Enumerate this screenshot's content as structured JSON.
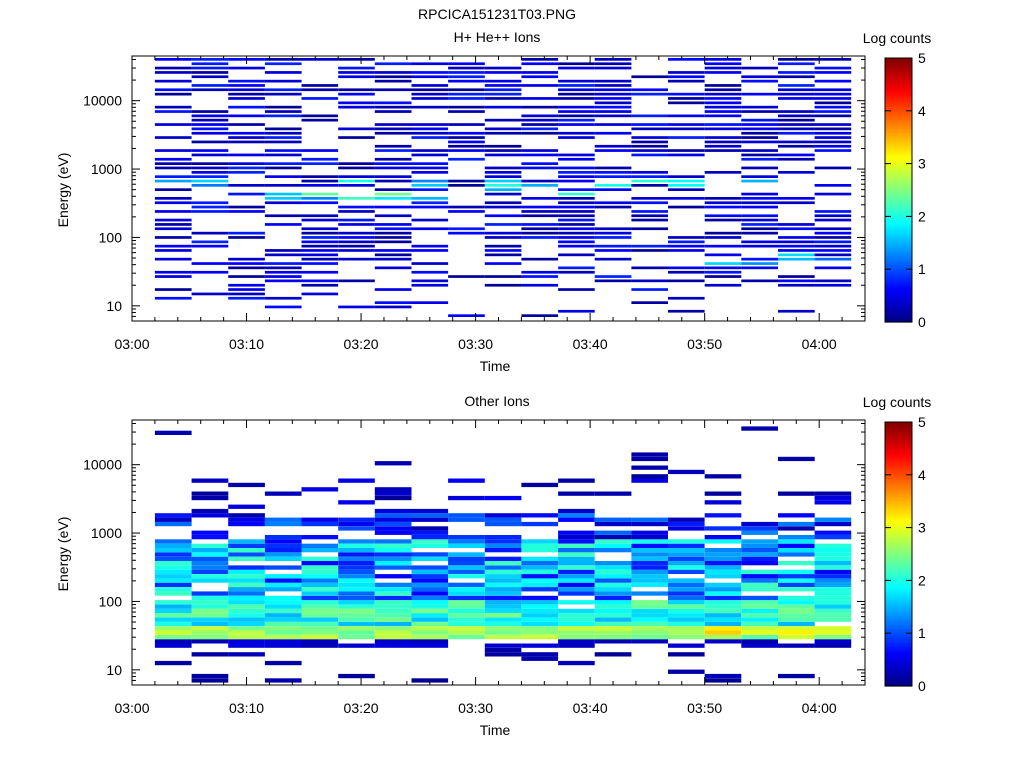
{
  "figure": {
    "title": "RPCICA151231T03.PNG"
  },
  "chart_data": [
    {
      "type": "heatmap",
      "title": "H+ He++ Ions",
      "xlabel": "Time",
      "ylabel": "Energy (eV)",
      "yscale": "log",
      "ylim": [
        6,
        45000
      ],
      "xlim_minutes": [
        0,
        64
      ],
      "xticks": [
        "03:00",
        "03:10",
        "03:20",
        "03:30",
        "03:40",
        "03:50",
        "04:00"
      ],
      "yticks": [
        "10",
        "100",
        "1000",
        "10000"
      ],
      "colorbar": {
        "label": "Log counts",
        "range": [
          0,
          5
        ],
        "ticks": [
          "0",
          "1",
          "2",
          "3",
          "4",
          "5"
        ]
      },
      "time_columns_start_minutes": [
        2,
        5.2,
        8.4,
        11.6,
        14.8,
        18,
        21.2,
        24.4,
        27.6,
        30.8,
        34,
        37.2,
        40.4,
        43.6,
        46.8,
        50,
        53.2,
        56.4,
        59.6
      ],
      "column_width_minutes": 3.2,
      "seed": 7,
      "profile": "h_ions"
    },
    {
      "type": "heatmap",
      "title": "Other Ions",
      "xlabel": "Time",
      "ylabel": "Energy (eV)",
      "yscale": "log",
      "ylim": [
        6,
        45000
      ],
      "xlim_minutes": [
        0,
        64
      ],
      "xticks": [
        "03:00",
        "03:10",
        "03:20",
        "03:30",
        "03:40",
        "03:50",
        "04:00"
      ],
      "yticks": [
        "10",
        "100",
        "1000",
        "10000"
      ],
      "colorbar": {
        "label": "Log counts",
        "range": [
          0,
          5
        ],
        "ticks": [
          "0",
          "1",
          "2",
          "3",
          "4",
          "5"
        ]
      },
      "time_columns_start_minutes": [
        2,
        5.2,
        8.4,
        11.6,
        14.8,
        18,
        21.2,
        24.4,
        27.6,
        30.8,
        34,
        37.2,
        40.4,
        43.6,
        46.8,
        50,
        53.2,
        56.4,
        59.6
      ],
      "column_width_minutes": 3.2,
      "seed": 13,
      "profile": "other_ions"
    }
  ]
}
